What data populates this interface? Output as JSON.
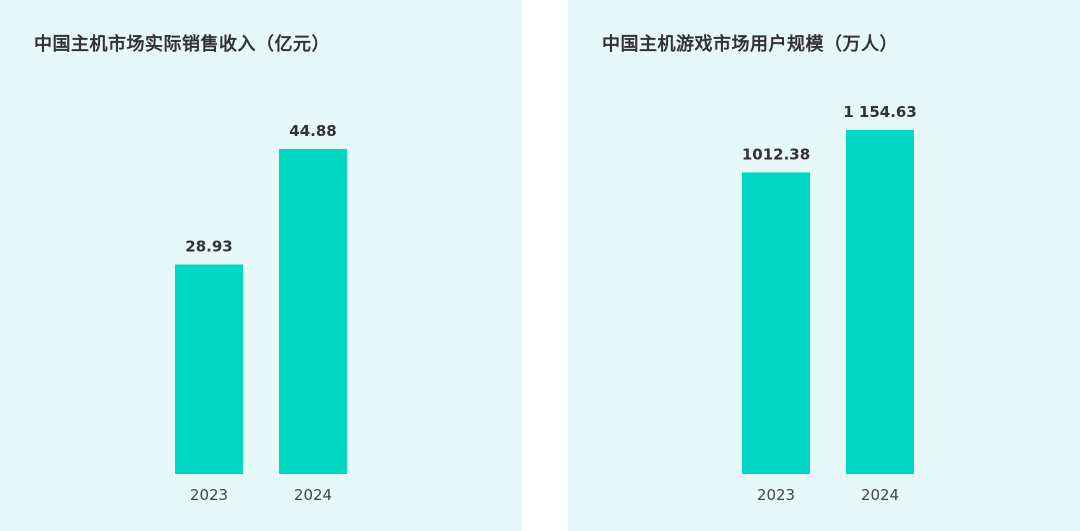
{
  "colors": {
    "panel_bg": "#e6f8f8",
    "bar": "#00d8c4",
    "text": "#333333"
  },
  "chart_data": [
    {
      "type": "bar",
      "title": "中国主机市场实际销售收入（亿元）",
      "categories": [
        "2023",
        "2024"
      ],
      "values": [
        28.93,
        44.88
      ],
      "value_labels": [
        "28.93",
        "44.88"
      ],
      "ylim": [
        0,
        47.5
      ],
      "grid": false,
      "legend": "none"
    },
    {
      "type": "bar",
      "title": "中国主机游戏市场用户规模（万人）",
      "categories": [
        "2023",
        "2024"
      ],
      "values": [
        1012.38,
        1154.63
      ],
      "value_labels": [
        "1012.38",
        "1 154.63"
      ],
      "ylim": [
        0,
        1154.63
      ],
      "grid": false,
      "legend": "none"
    }
  ]
}
